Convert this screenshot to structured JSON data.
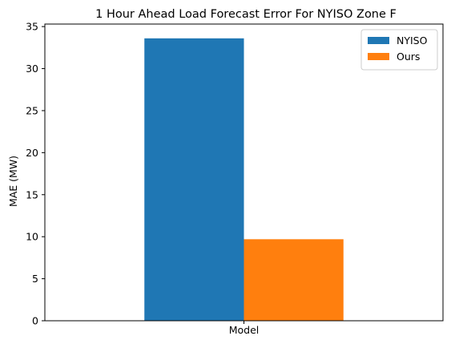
{
  "chart_data": {
    "type": "bar",
    "title": "1 Hour Ahead Load Forecast Error For NYISO Zone F",
    "xlabel": "",
    "ylabel": "MAE (MW)",
    "categories": [
      "Model"
    ],
    "series": [
      {
        "name": "NYISO",
        "values": [
          33.6
        ],
        "color": "#1f77b4"
      },
      {
        "name": "Ours",
        "values": [
          9.7
        ],
        "color": "#ff7f0e"
      }
    ],
    "ylim": [
      0,
      35.3
    ],
    "yticks": [
      0,
      5,
      10,
      15,
      20,
      25,
      30,
      35
    ],
    "grid": false,
    "legend_position": "top-right"
  }
}
